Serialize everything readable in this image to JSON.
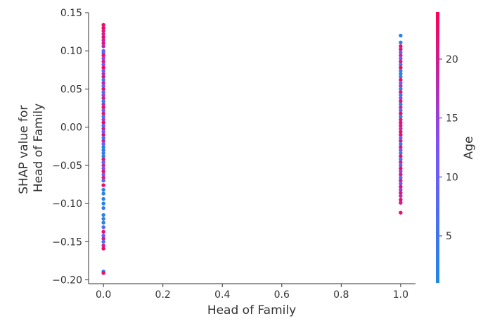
{
  "chart_data": {
    "type": "scatter",
    "xlabel": "Head of Family",
    "ylabel": [
      "SHAP value for",
      "Head of Family"
    ],
    "xlim": [
      -0.05,
      1.05
    ],
    "ylim": [
      -0.205,
      0.15
    ],
    "xticks": [
      0.0,
      0.2,
      0.4,
      0.6,
      0.8,
      1.0
    ],
    "xtick_labels": [
      "0.0",
      "0.2",
      "0.4",
      "0.6",
      "0.8",
      "1.0"
    ],
    "yticks": [
      0.15,
      0.1,
      0.05,
      0.0,
      -0.05,
      -0.1,
      -0.15,
      -0.2
    ],
    "ytick_labels": [
      "0.15",
      "0.10",
      "0.05",
      "0.00",
      "−0.05",
      "−0.10",
      "−0.15",
      "−0.20"
    ],
    "grid": false,
    "colorbar": {
      "label": "Age",
      "range": [
        1,
        24
      ],
      "ticks": [
        5,
        10,
        15,
        20
      ],
      "tick_labels": [
        "5",
        "10",
        "15",
        "20"
      ],
      "color_low": "#1e88e5",
      "color_mid": "#7c52ff",
      "color_high": "#ff0052"
    },
    "points": [
      {
        "x": 0,
        "y": 0.134,
        "c": 22
      },
      {
        "x": 0,
        "y": 0.13,
        "c": 23
      },
      {
        "x": 0,
        "y": 0.126,
        "c": 21
      },
      {
        "x": 0,
        "y": 0.122,
        "c": 20
      },
      {
        "x": 0,
        "y": 0.118,
        "c": 22
      },
      {
        "x": 0,
        "y": 0.114,
        "c": 19
      },
      {
        "x": 0,
        "y": 0.11,
        "c": 21
      },
      {
        "x": 0,
        "y": 0.106,
        "c": 18
      },
      {
        "x": 0,
        "y": 0.1,
        "c": 10
      },
      {
        "x": 0,
        "y": 0.097,
        "c": 8
      },
      {
        "x": 0,
        "y": 0.094,
        "c": 22
      },
      {
        "x": 0,
        "y": 0.09,
        "c": 14
      },
      {
        "x": 0,
        "y": 0.086,
        "c": 20
      },
      {
        "x": 0,
        "y": 0.082,
        "c": 12
      },
      {
        "x": 0,
        "y": 0.078,
        "c": 23
      },
      {
        "x": 0,
        "y": 0.074,
        "c": 9
      },
      {
        "x": 0,
        "y": 0.07,
        "c": 17
      },
      {
        "x": 0,
        "y": 0.066,
        "c": 21
      },
      {
        "x": 0,
        "y": 0.062,
        "c": 6
      },
      {
        "x": 0,
        "y": 0.058,
        "c": 19
      },
      {
        "x": 0,
        "y": 0.054,
        "c": 11
      },
      {
        "x": 0,
        "y": 0.05,
        "c": 22
      },
      {
        "x": 0,
        "y": 0.046,
        "c": 7
      },
      {
        "x": 0,
        "y": 0.042,
        "c": 15
      },
      {
        "x": 0,
        "y": 0.038,
        "c": 20
      },
      {
        "x": 0,
        "y": 0.034,
        "c": 4
      },
      {
        "x": 0,
        "y": 0.03,
        "c": 18
      },
      {
        "x": 0,
        "y": 0.026,
        "c": 22
      },
      {
        "x": 0,
        "y": 0.022,
        "c": 9
      },
      {
        "x": 0,
        "y": 0.018,
        "c": 21
      },
      {
        "x": 0,
        "y": 0.014,
        "c": 3
      },
      {
        "x": 0,
        "y": 0.01,
        "c": 16
      },
      {
        "x": 0,
        "y": 0.006,
        "c": 23
      },
      {
        "x": 0,
        "y": 0.002,
        "c": 8
      },
      {
        "x": 0,
        "y": -0.002,
        "c": 20
      },
      {
        "x": 0,
        "y": -0.006,
        "c": 12
      },
      {
        "x": 0,
        "y": -0.01,
        "c": 22
      },
      {
        "x": 0,
        "y": -0.014,
        "c": 5
      },
      {
        "x": 0,
        "y": -0.018,
        "c": 19
      },
      {
        "x": 0,
        "y": -0.022,
        "c": 10
      },
      {
        "x": 0,
        "y": -0.026,
        "c": 2
      },
      {
        "x": 0,
        "y": -0.03,
        "c": 3
      },
      {
        "x": 0,
        "y": -0.034,
        "c": 4
      },
      {
        "x": 0,
        "y": -0.038,
        "c": 2
      },
      {
        "x": 0,
        "y": -0.042,
        "c": 21
      },
      {
        "x": 0,
        "y": -0.046,
        "c": 7
      },
      {
        "x": 0,
        "y": -0.05,
        "c": 18
      },
      {
        "x": 0,
        "y": -0.054,
        "c": 13
      },
      {
        "x": 0,
        "y": -0.058,
        "c": 22
      },
      {
        "x": 0,
        "y": -0.062,
        "c": 9
      },
      {
        "x": 0,
        "y": -0.066,
        "c": 20
      },
      {
        "x": 0,
        "y": -0.07,
        "c": 6
      },
      {
        "x": 0,
        "y": -0.076,
        "c": 23
      },
      {
        "x": 0,
        "y": -0.082,
        "c": 3
      },
      {
        "x": 0,
        "y": -0.087,
        "c": 2
      },
      {
        "x": 0,
        "y": -0.094,
        "c": 3
      },
      {
        "x": 0,
        "y": -0.1,
        "c": 2
      },
      {
        "x": 0,
        "y": -0.106,
        "c": 4
      },
      {
        "x": 0,
        "y": -0.115,
        "c": 2
      },
      {
        "x": 0,
        "y": -0.12,
        "c": 3
      },
      {
        "x": 0,
        "y": -0.125,
        "c": 2
      },
      {
        "x": 0,
        "y": -0.131,
        "c": 8
      },
      {
        "x": 0,
        "y": -0.137,
        "c": 22
      },
      {
        "x": 0,
        "y": -0.142,
        "c": 12
      },
      {
        "x": 0,
        "y": -0.146,
        "c": 21
      },
      {
        "x": 0,
        "y": -0.15,
        "c": 6
      },
      {
        "x": 0,
        "y": -0.155,
        "c": 20
      },
      {
        "x": 0,
        "y": -0.159,
        "c": 23
      },
      {
        "x": 0,
        "y": -0.189,
        "c": 2
      },
      {
        "x": 0,
        "y": -0.191,
        "c": 22
      },
      {
        "x": 1,
        "y": 0.12,
        "c": 2
      },
      {
        "x": 1,
        "y": 0.111,
        "c": 3
      },
      {
        "x": 1,
        "y": 0.106,
        "c": 22
      },
      {
        "x": 1,
        "y": 0.102,
        "c": 21
      },
      {
        "x": 1,
        "y": 0.098,
        "c": 9
      },
      {
        "x": 1,
        "y": 0.094,
        "c": 19
      },
      {
        "x": 1,
        "y": 0.09,
        "c": 12
      },
      {
        "x": 1,
        "y": 0.086,
        "c": 20
      },
      {
        "x": 1,
        "y": 0.082,
        "c": 6
      },
      {
        "x": 1,
        "y": 0.078,
        "c": 23
      },
      {
        "x": 1,
        "y": 0.074,
        "c": 3
      },
      {
        "x": 1,
        "y": 0.07,
        "c": 2
      },
      {
        "x": 1,
        "y": 0.066,
        "c": 4
      },
      {
        "x": 1,
        "y": 0.062,
        "c": 22
      },
      {
        "x": 1,
        "y": 0.058,
        "c": 10
      },
      {
        "x": 1,
        "y": 0.054,
        "c": 17
      },
      {
        "x": 1,
        "y": 0.05,
        "c": 2
      },
      {
        "x": 1,
        "y": 0.046,
        "c": 21
      },
      {
        "x": 1,
        "y": 0.042,
        "c": 5
      },
      {
        "x": 1,
        "y": 0.038,
        "c": 14
      },
      {
        "x": 1,
        "y": 0.034,
        "c": 22
      },
      {
        "x": 1,
        "y": 0.03,
        "c": 3
      },
      {
        "x": 1,
        "y": 0.026,
        "c": 19
      },
      {
        "x": 1,
        "y": 0.022,
        "c": 8
      },
      {
        "x": 1,
        "y": 0.018,
        "c": 23
      },
      {
        "x": 1,
        "y": 0.014,
        "c": 2
      },
      {
        "x": 1,
        "y": 0.01,
        "c": 20
      },
      {
        "x": 1,
        "y": 0.006,
        "c": 22
      },
      {
        "x": 1,
        "y": 0.002,
        "c": 21
      },
      {
        "x": 1,
        "y": -0.002,
        "c": 18
      },
      {
        "x": 1,
        "y": -0.006,
        "c": 22
      },
      {
        "x": 1,
        "y": -0.01,
        "c": 23
      },
      {
        "x": 1,
        "y": -0.014,
        "c": 11
      },
      {
        "x": 1,
        "y": -0.018,
        "c": 20
      },
      {
        "x": 1,
        "y": -0.022,
        "c": 6
      },
      {
        "x": 1,
        "y": -0.026,
        "c": 21
      },
      {
        "x": 1,
        "y": -0.03,
        "c": 13
      },
      {
        "x": 1,
        "y": -0.034,
        "c": 2
      },
      {
        "x": 1,
        "y": -0.038,
        "c": 22
      },
      {
        "x": 1,
        "y": -0.042,
        "c": 7
      },
      {
        "x": 1,
        "y": -0.046,
        "c": 19
      },
      {
        "x": 1,
        "y": -0.05,
        "c": 9
      },
      {
        "x": 1,
        "y": -0.054,
        "c": 23
      },
      {
        "x": 1,
        "y": -0.058,
        "c": 15
      },
      {
        "x": 1,
        "y": -0.062,
        "c": 21
      },
      {
        "x": 1,
        "y": -0.066,
        "c": 10
      },
      {
        "x": 1,
        "y": -0.07,
        "c": 20
      },
      {
        "x": 1,
        "y": -0.074,
        "c": 12
      },
      {
        "x": 1,
        "y": -0.078,
        "c": 22
      },
      {
        "x": 1,
        "y": -0.082,
        "c": 16
      },
      {
        "x": 1,
        "y": -0.086,
        "c": 21
      },
      {
        "x": 1,
        "y": -0.09,
        "c": 18
      },
      {
        "x": 1,
        "y": -0.095,
        "c": 22
      },
      {
        "x": 1,
        "y": -0.099,
        "c": 20
      },
      {
        "x": 1,
        "y": -0.112,
        "c": 22
      }
    ]
  }
}
